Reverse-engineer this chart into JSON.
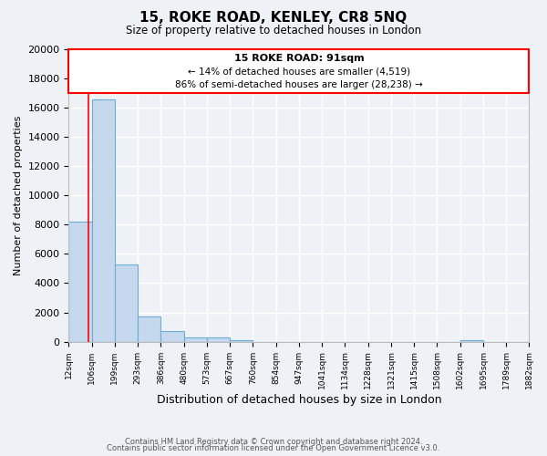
{
  "title": "15, ROKE ROAD, KENLEY, CR8 5NQ",
  "subtitle": "Size of property relative to detached houses in London",
  "xlabel": "Distribution of detached houses by size in London",
  "ylabel": "Number of detached properties",
  "bin_edges": [
    12,
    106,
    199,
    293,
    386,
    480,
    573,
    667,
    760,
    854,
    947,
    1041,
    1134,
    1228,
    1321,
    1415,
    1508,
    1602,
    1695,
    1789,
    1882
  ],
  "bin_labels": [
    "12sqm",
    "106sqm",
    "199sqm",
    "293sqm",
    "386sqm",
    "480sqm",
    "573sqm",
    "667sqm",
    "760sqm",
    "854sqm",
    "947sqm",
    "1041sqm",
    "1134sqm",
    "1228sqm",
    "1321sqm",
    "1415sqm",
    "1508sqm",
    "1602sqm",
    "1695sqm",
    "1789sqm",
    "1882sqm"
  ],
  "bar_heights": [
    8200,
    16600,
    5300,
    1750,
    700,
    280,
    270,
    100,
    0,
    0,
    0,
    0,
    0,
    0,
    0,
    0,
    0,
    100,
    0,
    0
  ],
  "bar_color": "#c5d8ed",
  "bar_edge_color": "#6aaed6",
  "property_size": 91,
  "property_label": "15 ROKE ROAD: 91sqm",
  "annotation_line1": "← 14% of detached houses are smaller (4,519)",
  "annotation_line2": "86% of semi-detached houses are larger (28,238) →",
  "red_line_x": 91,
  "ylim": [
    0,
    20000
  ],
  "yticks": [
    0,
    2000,
    4000,
    6000,
    8000,
    10000,
    12000,
    14000,
    16000,
    18000,
    20000
  ],
  "background_color": "#eef2f7",
  "grid_color": "#ffffff",
  "footer_line1": "Contains HM Land Registry data © Crown copyright and database right 2024.",
  "footer_line2": "Contains public sector information licensed under the Open Government Licence v3.0."
}
